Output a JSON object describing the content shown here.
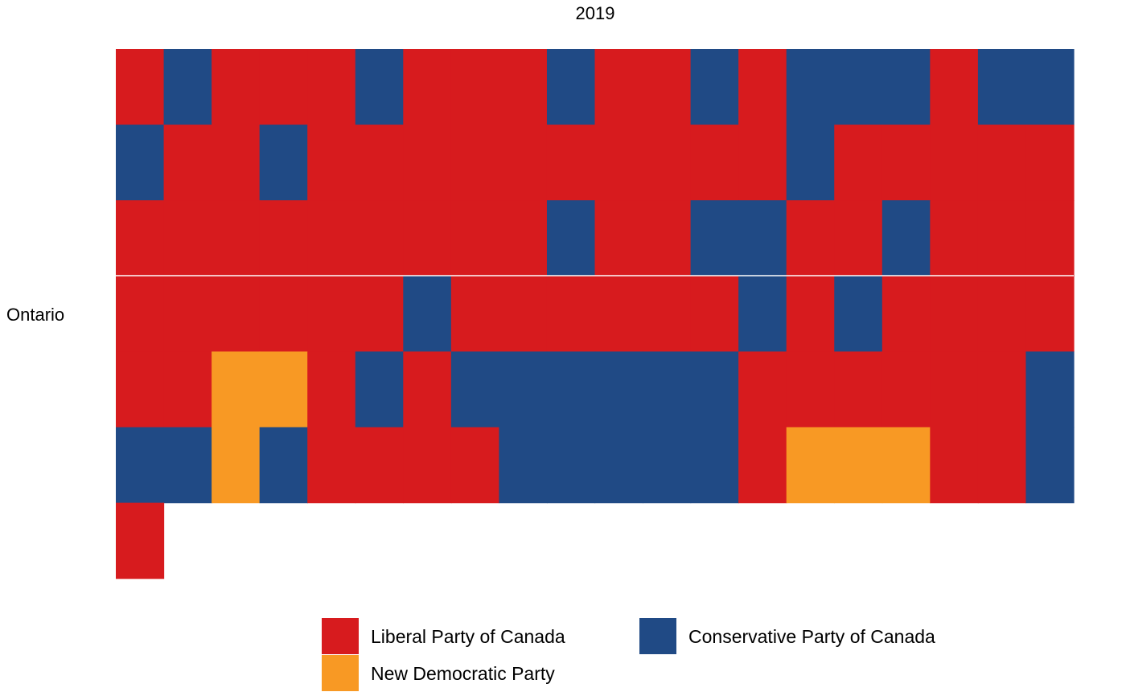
{
  "chart_data": {
    "type": "heatmap",
    "title": "2019",
    "row_label": "Ontario",
    "grid": false,
    "legend_position": "bottom",
    "columns_per_row": 20,
    "parties": [
      {
        "key": "L",
        "name": "Liberal Party of Canada",
        "color": "#d71b1e"
      },
      {
        "key": "C",
        "name": "Conservative Party of Canada",
        "color": "#204a85"
      },
      {
        "key": "N",
        "name": "New Democratic Party",
        "color": "#f89924"
      }
    ],
    "legend_order": [
      "L",
      "N",
      "C"
    ],
    "rows": [
      [
        "L",
        "C",
        "L",
        "L",
        "L",
        "C",
        "L",
        "L",
        "L",
        "C",
        "L",
        "L",
        "C",
        "L",
        "C",
        "C",
        "C",
        "L",
        "C",
        "C"
      ],
      [
        "C",
        "L",
        "L",
        "C",
        "L",
        "L",
        "L",
        "L",
        "L",
        "L",
        "L",
        "L",
        "L",
        "L",
        "C",
        "L",
        "L",
        "L",
        "L",
        "L"
      ],
      [
        "L",
        "L",
        "L",
        "L",
        "L",
        "L",
        "L",
        "L",
        "L",
        "C",
        "L",
        "L",
        "C",
        "C",
        "L",
        "L",
        "C",
        "L",
        "L",
        "L"
      ],
      [
        "L",
        "L",
        "L",
        "L",
        "L",
        "L",
        "C",
        "L",
        "L",
        "L",
        "L",
        "L",
        "L",
        "C",
        "L",
        "C",
        "L",
        "L",
        "L",
        "L"
      ],
      [
        "L",
        "L",
        "N",
        "N",
        "L",
        "C",
        "L",
        "C",
        "C",
        "C",
        "C",
        "C",
        "C",
        "L",
        "L",
        "L",
        "L",
        "L",
        "L",
        "C"
      ],
      [
        "C",
        "C",
        "N",
        "C",
        "L",
        "L",
        "L",
        "L",
        "C",
        "C",
        "C",
        "C",
        "C",
        "L",
        "N",
        "N",
        "N",
        "L",
        "L",
        "C"
      ],
      [
        "L"
      ]
    ],
    "seat_counts": {
      "L": 79,
      "C": 36,
      "N": 6
    }
  }
}
